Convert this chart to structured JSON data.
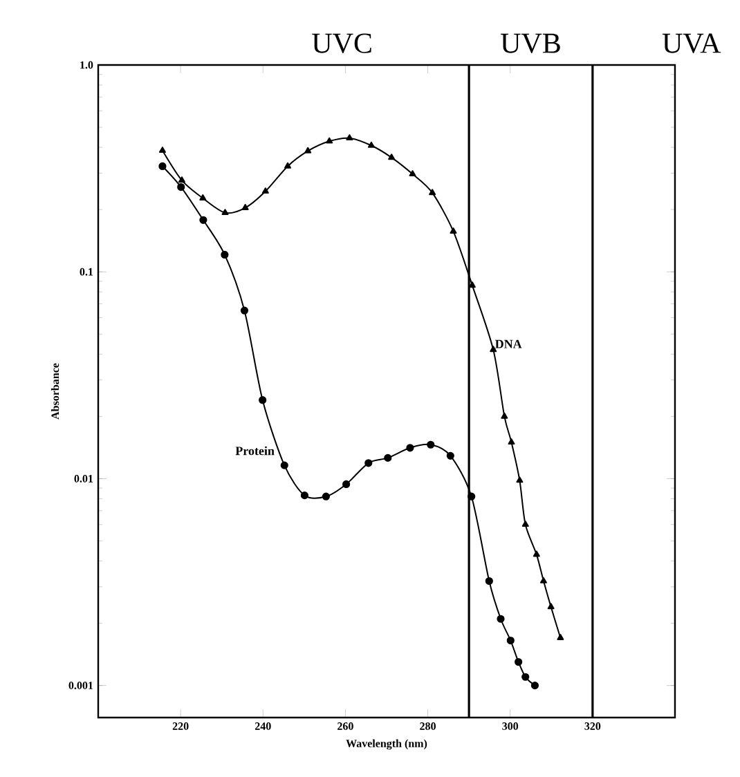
{
  "chart_data": {
    "type": "line",
    "xlabel": "Wavelength (nm)",
    "ylabel": "Absorbance",
    "log": "y",
    "xlim": [
      200,
      340
    ],
    "xticks": [
      220,
      240,
      260,
      280,
      300,
      320
    ],
    "ylim": [
      0.0007,
      1.0
    ],
    "yticks": [
      0.001,
      0.01,
      0.1,
      {
        "value": 1.0,
        "label": "1.0"
      }
    ],
    "grid": false,
    "line_style": "solid",
    "ref_lines": [
      {
        "axis": "x",
        "value": 290
      },
      {
        "axis": "x",
        "value": 320
      }
    ],
    "annotations": [
      "UVC",
      "UVB",
      "UVA"
    ],
    "series": [
      {
        "name": "DNA",
        "color": "#000000",
        "marker": "triangle",
        "x": [
          215.6,
          220.3,
          225.4,
          230.8,
          235.7,
          240.6,
          246.0,
          250.9,
          256.1,
          261.0,
          266.3,
          271.2,
          276.3,
          281.1,
          286.2,
          290.8,
          295.9,
          298.6,
          300.3,
          302.3,
          303.7,
          306.4,
          308.1,
          309.9,
          312.2
        ],
        "values": [
          0.386,
          0.277,
          0.227,
          0.193,
          0.204,
          0.245,
          0.324,
          0.384,
          0.428,
          0.443,
          0.408,
          0.357,
          0.297,
          0.241,
          0.157,
          0.086,
          0.042,
          0.02,
          0.015,
          0.0098,
          0.006,
          0.0043,
          0.0032,
          0.0024,
          0.0017
        ]
      },
      {
        "name": "Protein",
        "color": "#000000",
        "marker": "circle",
        "x": [
          215.6,
          220.1,
          225.5,
          230.7,
          235.5,
          239.9,
          245.2,
          250.1,
          255.3,
          260.2,
          265.6,
          270.3,
          275.7,
          280.7,
          285.5,
          290.6,
          294.9,
          297.7,
          300.1,
          302.0,
          303.7,
          306.0
        ],
        "values": [
          0.324,
          0.257,
          0.178,
          0.121,
          0.065,
          0.024,
          0.0116,
          0.0083,
          0.0082,
          0.0094,
          0.0119,
          0.0126,
          0.0141,
          0.0146,
          0.0129,
          0.0082,
          0.0032,
          0.0021,
          0.00165,
          0.0013,
          0.0011,
          0.001
        ]
      }
    ]
  }
}
